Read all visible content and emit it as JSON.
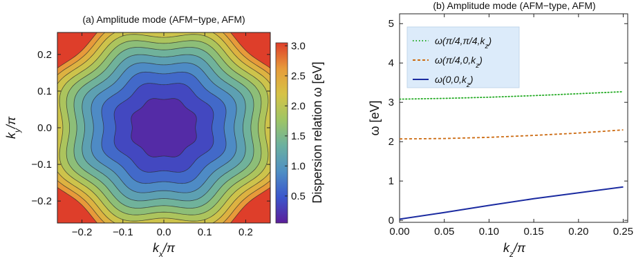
{
  "chart_data": [
    {
      "type": "heatmap",
      "title": "(a) Amplitude mode (AFM−type, AFM)",
      "xlabel": "k_x/π",
      "ylabel": "k_y/π",
      "xlim": [
        -0.26,
        0.26
      ],
      "ylim": [
        -0.26,
        0.26
      ],
      "xticks": [
        "−0.2",
        "−0.1",
        "0.0",
        "0.1",
        "0.2"
      ],
      "yticks": [
        "−0.2",
        "−0.1",
        "0.0",
        "0.1",
        "0.2"
      ],
      "contour_levels": [
        0.25,
        0.5,
        0.75,
        1.0,
        1.25,
        1.5,
        1.75,
        2.0,
        2.25,
        2.5,
        2.75
      ],
      "value_range": [
        0.05,
        3.05
      ],
      "colorbar": {
        "label": "Dispersion relation ω [eV]",
        "ticks": [
          "0.5",
          "1.0",
          "1.5",
          "2.0",
          "2.5",
          "3.0"
        ],
        "range": [
          0.05,
          3.05
        ]
      },
      "colormap": [
        "#5b1e9a",
        "#3b56cc",
        "#4f8fc4",
        "#6bb0a0",
        "#9ec565",
        "#d6c346",
        "#e79b3a",
        "#de3e2a"
      ]
    },
    {
      "type": "line",
      "title": "(b) Amplitude mode (AFM−type, AFM)",
      "xlabel": "k_z/π",
      "ylabel": "ω [eV]",
      "xlim": [
        0,
        0.255
      ],
      "ylim": [
        -0.05,
        5.25
      ],
      "xticks": [
        "0.00",
        "0.05",
        "0.10",
        "0.15",
        "0.20",
        "0.25"
      ],
      "yticks": [
        "0",
        "1",
        "2",
        "3",
        "4",
        "5"
      ],
      "legend_position": "top-left",
      "series": [
        {
          "name": "ω(π/4,π/4,k_z)",
          "color": "#22aa22",
          "style": "dotted",
          "x": [
            0,
            0.05,
            0.1,
            0.15,
            0.2,
            0.25
          ],
          "y": [
            3.08,
            3.1,
            3.13,
            3.17,
            3.22,
            3.27
          ]
        },
        {
          "name": "ω(π/4,0,k_z)",
          "color": "#cc6a10",
          "style": "dashed",
          "x": [
            0,
            0.05,
            0.1,
            0.15,
            0.2,
            0.25
          ],
          "y": [
            2.07,
            2.08,
            2.11,
            2.16,
            2.22,
            2.3
          ]
        },
        {
          "name": "ω(0,0,k_z)",
          "color": "#1a2aa0",
          "style": "solid",
          "x": [
            0,
            0.05,
            0.1,
            0.15,
            0.2,
            0.25
          ],
          "y": [
            0.03,
            0.2,
            0.38,
            0.55,
            0.7,
            0.85
          ]
        }
      ]
    }
  ]
}
